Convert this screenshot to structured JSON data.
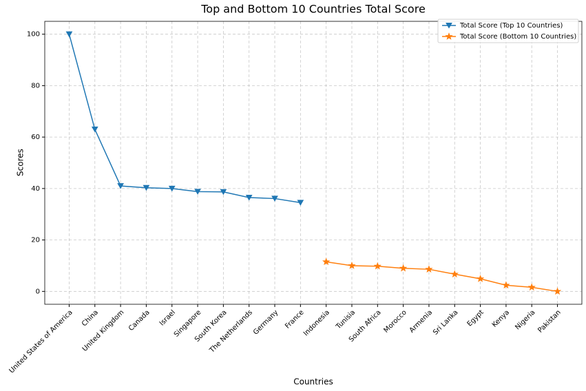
{
  "chart_data": {
    "type": "line",
    "title": "Top and Bottom 10 Countries Total Score",
    "xlabel": "Countries",
    "ylabel": "Scores",
    "categories": [
      "United States of America",
      "China",
      "United Kingdom",
      "Canada",
      "Israel",
      "Singapore",
      "South Korea",
      "The Netherlands",
      "Germany",
      "France",
      "Indonesia",
      "Tunisia",
      "South Africa",
      "Morocco",
      "Armenia",
      "Sri Lanka",
      "Egypt",
      "Kenya",
      "Nigeria",
      "Pakistan"
    ],
    "series": [
      {
        "name": "Total Score (Top 10 Countries)",
        "color": "#1f77b4",
        "marker": "triangle-down",
        "values": [
          100,
          63,
          41,
          40.3,
          40,
          38.8,
          38.7,
          36.5,
          36.1,
          34.5,
          null,
          null,
          null,
          null,
          null,
          null,
          null,
          null,
          null,
          null
        ]
      },
      {
        "name": "Total Score (Bottom 10 Countries)",
        "color": "#ff7f0e",
        "marker": "star",
        "values": [
          null,
          null,
          null,
          null,
          null,
          null,
          null,
          null,
          null,
          null,
          11.5,
          10,
          9.8,
          9,
          8.6,
          6.7,
          4.9,
          2.4,
          1.6,
          0
        ]
      }
    ],
    "ylim": [
      -5,
      105
    ],
    "yticks": [
      0,
      20,
      40,
      60,
      80,
      100
    ],
    "grid": true,
    "legend": "upper right"
  }
}
